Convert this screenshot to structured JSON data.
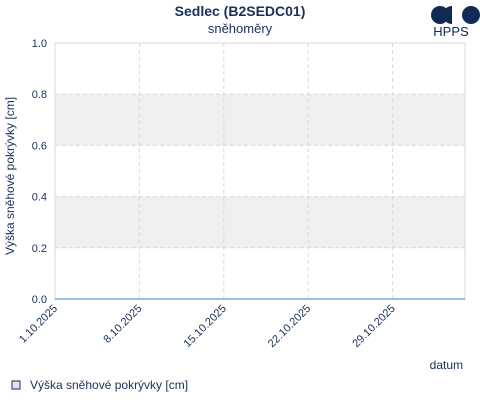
{
  "colors": {
    "text": "#1a2f5a",
    "grid": "#d9d9d9",
    "band": "#efefef",
    "axis": "#c8c8c8",
    "series_line": "#5b9bd5",
    "series_fill": "#dde6f0",
    "logo": "#0f2a55"
  },
  "logo": {
    "text": "HPPS",
    "icon": "hpps-logo-icon"
  },
  "chart_data": {
    "type": "line",
    "title": "Sedlec (B2SEDC01)",
    "subtitle": "sněhoměry",
    "xlabel": "datum",
    "ylabel": "Výška sněhové pokrývky [cm]",
    "ylim": [
      0,
      1
    ],
    "yticks": [
      "0.0",
      "0.2",
      "0.4",
      "0.6",
      "0.8",
      "1.0"
    ],
    "xlim": [
      "2025-10-01",
      "2025-11-04"
    ],
    "xticks": [
      {
        "date": "2025-10-01",
        "label": "1.10.2025"
      },
      {
        "date": "2025-10-08",
        "label": "8.10.2025"
      },
      {
        "date": "2025-10-15",
        "label": "15.10.2025"
      },
      {
        "date": "2025-10-22",
        "label": "22.10.2025"
      },
      {
        "date": "2025-10-29",
        "label": "29.10.2025"
      }
    ],
    "grid": true,
    "legend": "bottom-left",
    "series": [
      {
        "name": "Výška sněhové pokrývky [cm]",
        "x": [
          "2025-10-01",
          "2025-11-04"
        ],
        "values": [
          0,
          0
        ]
      }
    ]
  }
}
